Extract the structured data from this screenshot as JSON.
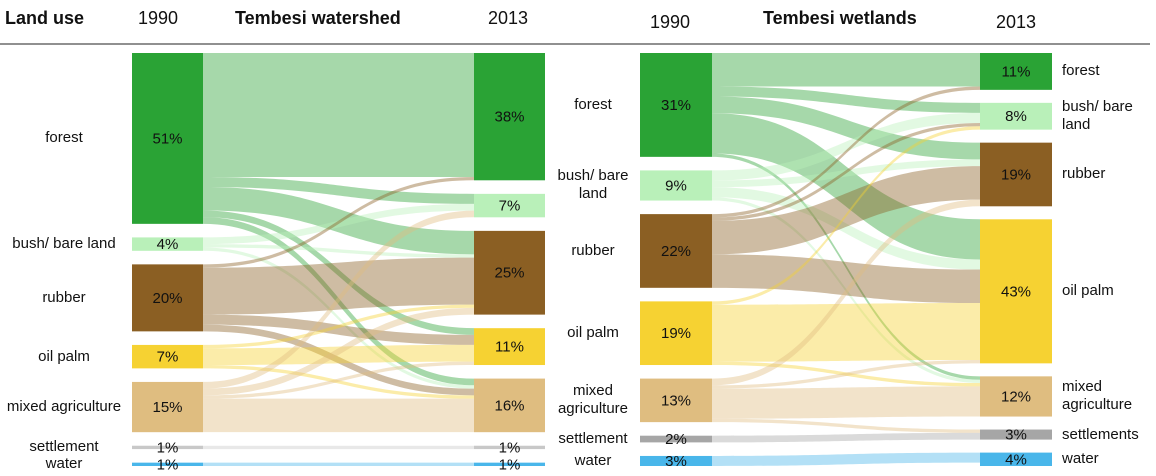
{
  "chart_data": [
    {
      "type": "sankey",
      "axis_title": "Land use",
      "title": "Tembesi watershed",
      "source_label": "1990",
      "target_label": "2013",
      "source": {
        "categories": [
          "forest",
          "bush/ bare land",
          "rubber",
          "oil palm",
          "mixed agriculture",
          "settlement",
          "water"
        ],
        "values": [
          51,
          4,
          20,
          7,
          15,
          1,
          1
        ],
        "value_labels": [
          "51%",
          "4%",
          "20%",
          "7%",
          "15%",
          "1%",
          "1%"
        ],
        "colors": [
          "#2aa335",
          "#b9f0b9",
          "#8b5f23",
          "#f6d232",
          "#dfbd80",
          "#c8c8c8",
          "#49b6ea"
        ]
      },
      "target": {
        "categories": [
          null,
          null,
          null,
          null,
          null,
          null,
          null
        ],
        "values": [
          38,
          7,
          25,
          11,
          16,
          1,
          1
        ],
        "value_labels": [
          "38%",
          "7%",
          "25%",
          "11%",
          "16%",
          "1%",
          "1%"
        ],
        "colors": [
          "#2aa335",
          "#b9f0b9",
          "#8b5f23",
          "#f6d232",
          "#dfbd80",
          "#c8c8c8",
          "#49b6ea"
        ]
      },
      "links": [
        {
          "source": 0,
          "target": 0,
          "value": 37
        },
        {
          "source": 0,
          "target": 1,
          "value": 3
        },
        {
          "source": 0,
          "target": 2,
          "value": 7
        },
        {
          "source": 0,
          "target": 3,
          "value": 2
        },
        {
          "source": 0,
          "target": 4,
          "value": 2
        },
        {
          "source": 1,
          "target": 1,
          "value": 2
        },
        {
          "source": 1,
          "target": 2,
          "value": 1
        },
        {
          "source": 1,
          "target": 4,
          "value": 1
        },
        {
          "source": 2,
          "target": 0,
          "value": 1
        },
        {
          "source": 2,
          "target": 2,
          "value": 14
        },
        {
          "source": 2,
          "target": 3,
          "value": 3
        },
        {
          "source": 2,
          "target": 4,
          "value": 2
        },
        {
          "source": 3,
          "target": 2,
          "value": 1
        },
        {
          "source": 3,
          "target": 3,
          "value": 5
        },
        {
          "source": 3,
          "target": 4,
          "value": 1
        },
        {
          "source": 4,
          "target": 1,
          "value": 2
        },
        {
          "source": 4,
          "target": 2,
          "value": 2
        },
        {
          "source": 4,
          "target": 3,
          "value": 1
        },
        {
          "source": 4,
          "target": 4,
          "value": 10
        },
        {
          "source": 5,
          "target": 5,
          "value": 1
        },
        {
          "source": 6,
          "target": 6,
          "value": 1
        }
      ]
    },
    {
      "type": "sankey",
      "title": "Tembesi wetlands",
      "source_label": "1990",
      "target_label": "2013",
      "source": {
        "categories": [
          "forest",
          "bush/ bare land",
          "rubber",
          "oil palm",
          "mixed agriculture",
          "settlement",
          "water"
        ],
        "values": [
          31,
          9,
          22,
          19,
          13,
          2,
          3
        ],
        "value_labels": [
          "31%",
          "9%",
          "22%",
          "19%",
          "13%",
          "2%",
          "3%"
        ],
        "colors": [
          "#2aa335",
          "#b9f0b9",
          "#8b5f23",
          "#f6d232",
          "#dfbd80",
          "#a6a6a6",
          "#49b6ea"
        ]
      },
      "target": {
        "categories": [
          "forest",
          "bush/ bare land",
          "rubber",
          "oil palm",
          "mixed agriculture",
          "settlements",
          "water"
        ],
        "values": [
          11,
          8,
          19,
          43,
          12,
          3,
          4
        ],
        "value_labels": [
          "11%",
          "8%",
          "19%",
          "43%",
          "12%",
          "3%",
          "4%"
        ],
        "colors": [
          "#2aa335",
          "#b9f0b9",
          "#8b5f23",
          "#f6d232",
          "#dfbd80",
          "#a6a6a6",
          "#49b6ea"
        ]
      },
      "links": [
        {
          "source": 0,
          "target": 0,
          "value": 10
        },
        {
          "source": 0,
          "target": 1,
          "value": 3
        },
        {
          "source": 0,
          "target": 2,
          "value": 5
        },
        {
          "source": 0,
          "target": 3,
          "value": 12
        },
        {
          "source": 0,
          "target": 4,
          "value": 1
        },
        {
          "source": 1,
          "target": 1,
          "value": 3
        },
        {
          "source": 1,
          "target": 2,
          "value": 2
        },
        {
          "source": 1,
          "target": 3,
          "value": 3
        },
        {
          "source": 1,
          "target": 4,
          "value": 1
        },
        {
          "source": 2,
          "target": 0,
          "value": 1
        },
        {
          "source": 2,
          "target": 1,
          "value": 1
        },
        {
          "source": 2,
          "target": 2,
          "value": 10
        },
        {
          "source": 2,
          "target": 3,
          "value": 10
        },
        {
          "source": 3,
          "target": 1,
          "value": 1
        },
        {
          "source": 3,
          "target": 3,
          "value": 17
        },
        {
          "source": 3,
          "target": 4,
          "value": 1
        },
        {
          "source": 4,
          "target": 2,
          "value": 2
        },
        {
          "source": 4,
          "target": 3,
          "value": 1
        },
        {
          "source": 4,
          "target": 4,
          "value": 9
        },
        {
          "source": 4,
          "target": 5,
          "value": 1
        },
        {
          "source": 5,
          "target": 5,
          "value": 2
        },
        {
          "source": 6,
          "target": 6,
          "value": 3
        }
      ]
    }
  ]
}
